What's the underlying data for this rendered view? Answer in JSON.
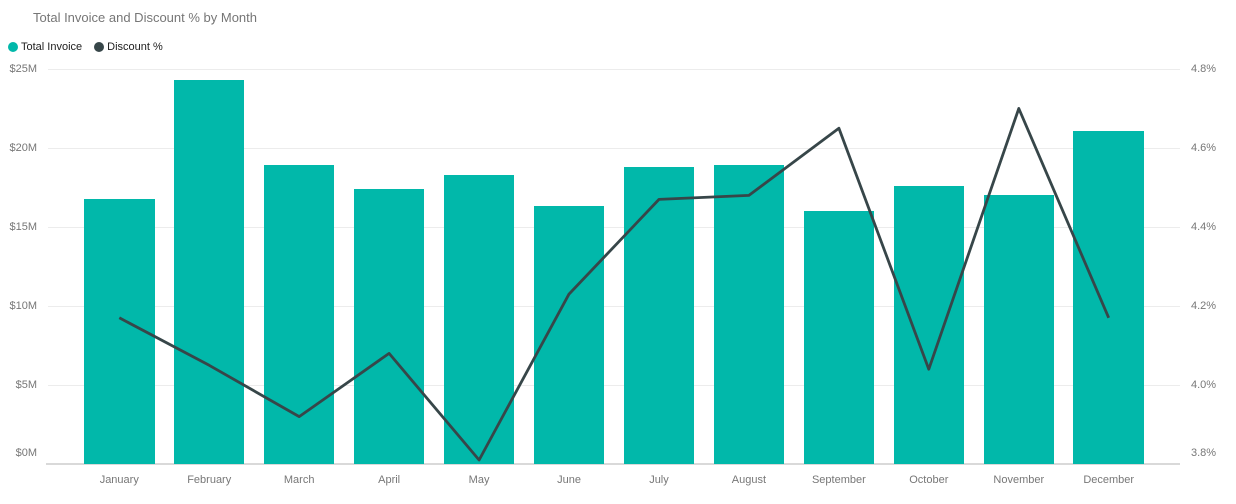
{
  "title": "Total Invoice and Discount % by Month",
  "legend": [
    {
      "label": "Total Invoice",
      "color": "#01b8aa"
    },
    {
      "label": "Discount %",
      "color": "#374649"
    }
  ],
  "colors": {
    "bar": "#01b8aa",
    "line": "#374649",
    "grid": "#ececec",
    "axis_line": "#d9d9d9",
    "tick_text": "#777777",
    "title_text": "#767676",
    "legend_text": "#212121"
  },
  "chart_data": {
    "type": "combo-bar-line",
    "title": "Total Invoice and Discount % by Month",
    "categories": [
      "January",
      "February",
      "March",
      "April",
      "May",
      "June",
      "July",
      "August",
      "September",
      "October",
      "November",
      "December"
    ],
    "series": [
      {
        "name": "Total Invoice",
        "type": "bar",
        "axis": "left",
        "unit": "$M",
        "color": "#01b8aa",
        "values": [
          16.8,
          24.3,
          18.9,
          17.4,
          18.3,
          16.3,
          18.8,
          18.9,
          16.0,
          17.6,
          17.0,
          21.1
        ]
      },
      {
        "name": "Discount %",
        "type": "line",
        "axis": "right",
        "unit": "%",
        "color": "#374649",
        "values": [
          4.17,
          4.05,
          3.92,
          4.08,
          3.81,
          4.23,
          4.47,
          4.48,
          4.65,
          4.04,
          4.7,
          4.17
        ]
      }
    ],
    "left_axis": {
      "min": 0,
      "max": 25,
      "ticks": [
        "$0M",
        "$5M",
        "$10M",
        "$15M",
        "$20M",
        "$25M"
      ]
    },
    "right_axis": {
      "min": 3.8,
      "max": 4.8,
      "ticks": [
        "3.8%",
        "4.0%",
        "4.2%",
        "4.4%",
        "4.6%",
        "4.8%"
      ]
    },
    "grid": true,
    "legend_position": "top-left"
  }
}
